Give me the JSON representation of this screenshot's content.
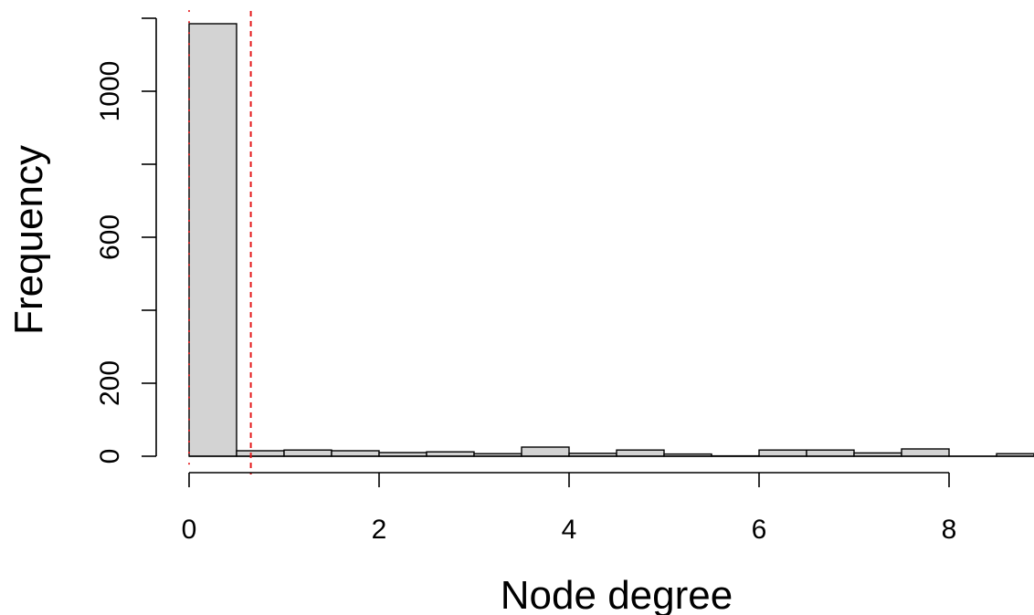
{
  "chart_data": {
    "type": "bar",
    "xlabel": "Node degree",
    "ylabel": "Frequency",
    "x_ticks": [
      0,
      2,
      4,
      6,
      8
    ],
    "y_ticks": [
      0,
      200,
      600,
      1000
    ],
    "xlim": [
      0,
      9
    ],
    "ylim": [
      0,
      1200
    ],
    "bin_width": 0.5,
    "bins": [
      {
        "start": 0.0,
        "count": 1185
      },
      {
        "start": 0.5,
        "count": 15
      },
      {
        "start": 1.0,
        "count": 17
      },
      {
        "start": 1.5,
        "count": 15
      },
      {
        "start": 2.0,
        "count": 10
      },
      {
        "start": 2.5,
        "count": 12
      },
      {
        "start": 3.0,
        "count": 7
      },
      {
        "start": 3.5,
        "count": 25
      },
      {
        "start": 4.0,
        "count": 8
      },
      {
        "start": 4.5,
        "count": 17
      },
      {
        "start": 5.0,
        "count": 6
      },
      {
        "start": 5.5,
        "count": 1
      },
      {
        "start": 6.0,
        "count": 17
      },
      {
        "start": 6.5,
        "count": 17
      },
      {
        "start": 7.0,
        "count": 9
      },
      {
        "start": 7.5,
        "count": 20
      },
      {
        "start": 8.0,
        "count": 0
      },
      {
        "start": 8.5,
        "count": 7
      }
    ],
    "reference_lines": [
      {
        "x": 0,
        "style": "dotted",
        "color": "#e41a1c"
      },
      {
        "x": 0.65,
        "style": "dashed",
        "color": "#e41a1c"
      }
    ],
    "bar_color": "#d3d3d3",
    "grid": false
  }
}
